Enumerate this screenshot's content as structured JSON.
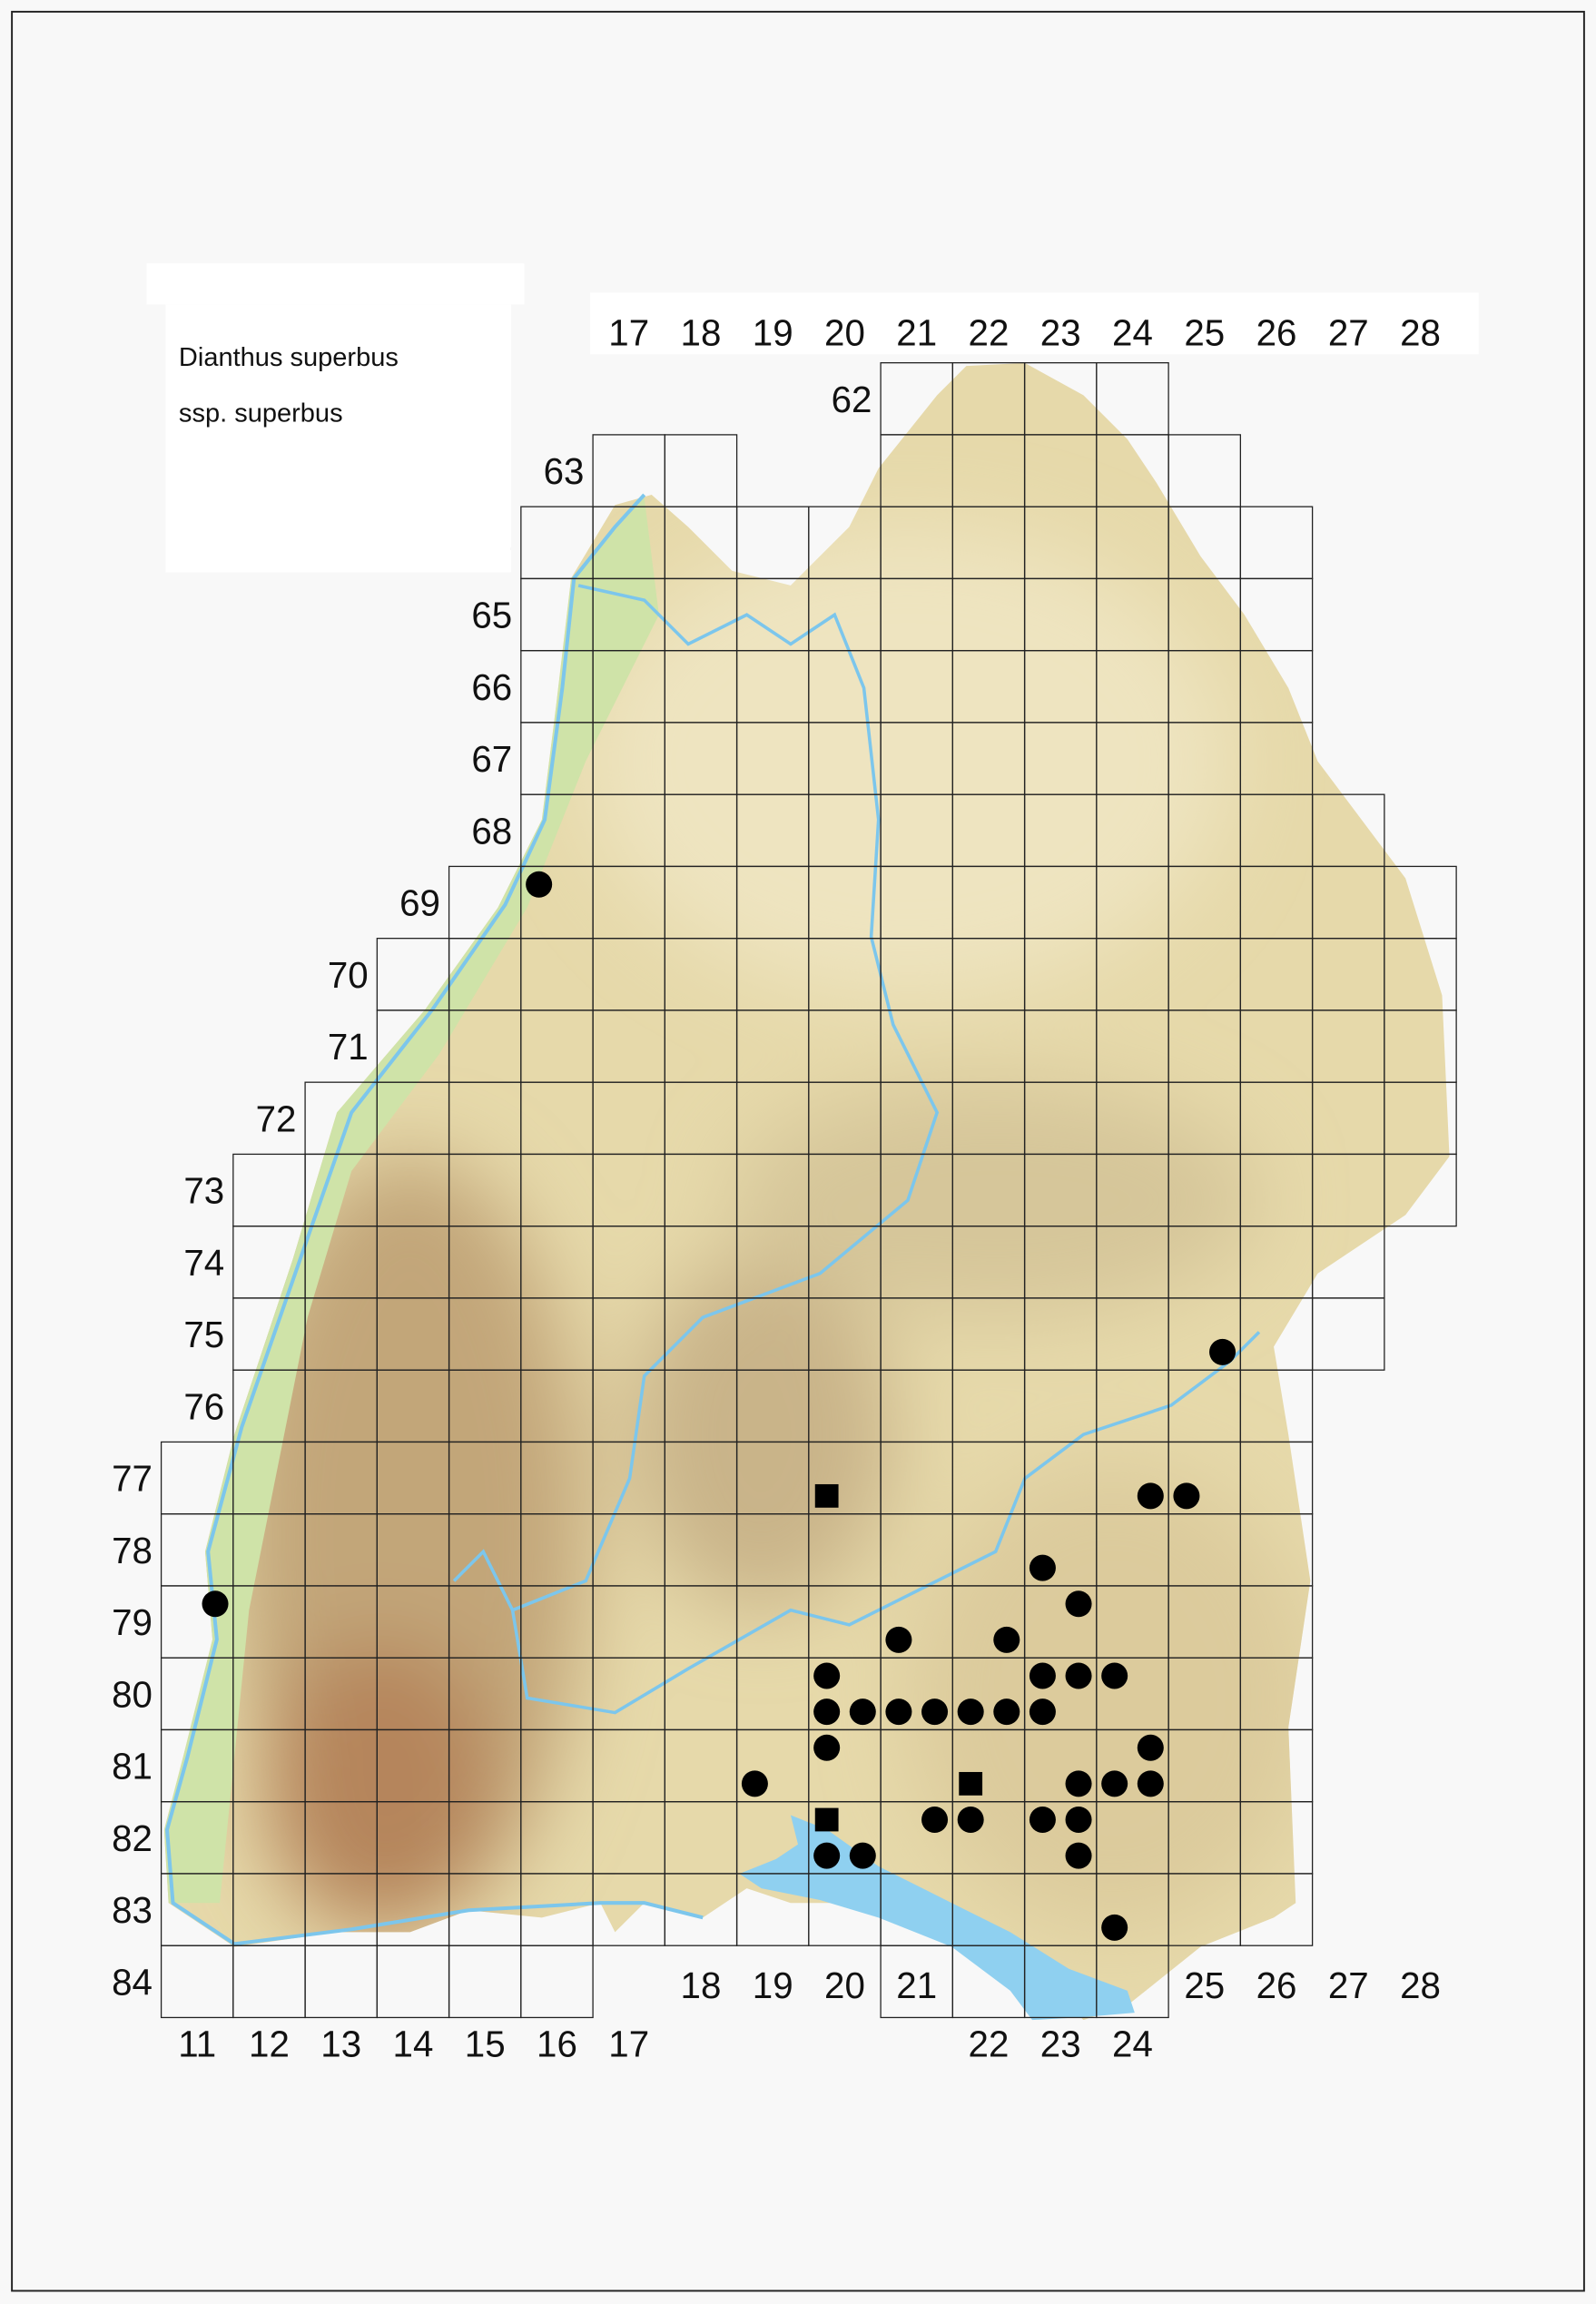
{
  "legend": {
    "species": "Dianthus superbus",
    "subspecies": "ssp. superbus"
  },
  "grid": {
    "top_column_labels": [
      "17",
      "18",
      "19",
      "20",
      "21",
      "22",
      "23",
      "24",
      "25",
      "26",
      "27",
      "28"
    ],
    "row_labels": [
      "62",
      "63",
      "64",
      "65",
      "66",
      "67",
      "68",
      "69",
      "70",
      "71",
      "72",
      "73",
      "74",
      "75",
      "76",
      "77",
      "78",
      "79",
      "80",
      "81",
      "82",
      "83",
      "84"
    ],
    "bottom_column_labels": [
      "11",
      "12",
      "13",
      "14",
      "15",
      "16",
      "17",
      "18",
      "19",
      "20",
      "21",
      "22",
      "23",
      "24",
      "25",
      "26",
      "27",
      "28"
    ]
  },
  "colors": {
    "marker": "#000000",
    "grid_line": "#222222",
    "water": "#8fd0f0",
    "lowland": "#cfe3a8",
    "upland": "#e6d9aa",
    "mountain": "#b89a6c"
  },
  "records": [
    {
      "row": 69,
      "col": 16,
      "qx": 0,
      "qy": 0,
      "symbol": "circle"
    },
    {
      "row": 75,
      "col": 25,
      "qx": 1,
      "qy": 1,
      "symbol": "circle"
    },
    {
      "row": 79,
      "col": 11,
      "qx": 1,
      "qy": 0,
      "symbol": "circle"
    },
    {
      "row": 77,
      "col": 20,
      "qx": 0,
      "qy": 1,
      "symbol": "square"
    },
    {
      "row": 77,
      "col": 24,
      "qx": 1,
      "qy": 1,
      "symbol": "circle"
    },
    {
      "row": 77,
      "col": 25,
      "qx": 0,
      "qy": 1,
      "symbol": "circle"
    },
    {
      "row": 78,
      "col": 23,
      "qx": 0,
      "qy": 1,
      "symbol": "circle"
    },
    {
      "row": 79,
      "col": 23,
      "qx": 1,
      "qy": 0,
      "symbol": "circle"
    },
    {
      "row": 79,
      "col": 21,
      "qx": 0,
      "qy": 1,
      "symbol": "circle"
    },
    {
      "row": 79,
      "col": 22,
      "qx": 1,
      "qy": 1,
      "symbol": "circle"
    },
    {
      "row": 80,
      "col": 20,
      "qx": 0,
      "qy": 0,
      "symbol": "circle"
    },
    {
      "row": 80,
      "col": 23,
      "qx": 0,
      "qy": 0,
      "symbol": "circle"
    },
    {
      "row": 80,
      "col": 23,
      "qx": 1,
      "qy": 0,
      "symbol": "circle"
    },
    {
      "row": 80,
      "col": 24,
      "qx": 0,
      "qy": 0,
      "symbol": "circle"
    },
    {
      "row": 80,
      "col": 20,
      "qx": 0,
      "qy": 1,
      "symbol": "circle"
    },
    {
      "row": 80,
      "col": 20,
      "qx": 1,
      "qy": 1,
      "symbol": "circle"
    },
    {
      "row": 80,
      "col": 21,
      "qx": 0,
      "qy": 1,
      "symbol": "circle"
    },
    {
      "row": 80,
      "col": 21,
      "qx": 1,
      "qy": 1,
      "symbol": "circle"
    },
    {
      "row": 80,
      "col": 22,
      "qx": 0,
      "qy": 1,
      "symbol": "circle"
    },
    {
      "row": 80,
      "col": 22,
      "qx": 1,
      "qy": 1,
      "symbol": "circle"
    },
    {
      "row": 80,
      "col": 23,
      "qx": 0,
      "qy": 1,
      "symbol": "circle"
    },
    {
      "row": 81,
      "col": 20,
      "qx": 0,
      "qy": 0,
      "symbol": "circle"
    },
    {
      "row": 81,
      "col": 24,
      "qx": 1,
      "qy": 0,
      "symbol": "circle"
    },
    {
      "row": 81,
      "col": 19,
      "qx": 0,
      "qy": 1,
      "symbol": "circle"
    },
    {
      "row": 81,
      "col": 22,
      "qx": 0,
      "qy": 1,
      "symbol": "square"
    },
    {
      "row": 81,
      "col": 23,
      "qx": 1,
      "qy": 1,
      "symbol": "circle"
    },
    {
      "row": 81,
      "col": 24,
      "qx": 0,
      "qy": 1,
      "symbol": "circle"
    },
    {
      "row": 81,
      "col": 24,
      "qx": 1,
      "qy": 1,
      "symbol": "circle"
    },
    {
      "row": 82,
      "col": 20,
      "qx": 0,
      "qy": 0,
      "symbol": "square"
    },
    {
      "row": 82,
      "col": 21,
      "qx": 1,
      "qy": 0,
      "symbol": "circle"
    },
    {
      "row": 82,
      "col": 22,
      "qx": 0,
      "qy": 0,
      "symbol": "circle"
    },
    {
      "row": 82,
      "col": 23,
      "qx": 0,
      "qy": 0,
      "symbol": "circle"
    },
    {
      "row": 82,
      "col": 23,
      "qx": 1,
      "qy": 0,
      "symbol": "circle"
    },
    {
      "row": 82,
      "col": 20,
      "qx": 0,
      "qy": 1,
      "symbol": "circle"
    },
    {
      "row": 82,
      "col": 20,
      "qx": 1,
      "qy": 1,
      "symbol": "circle"
    },
    {
      "row": 82,
      "col": 23,
      "qx": 1,
      "qy": 1,
      "symbol": "circle"
    },
    {
      "row": 83,
      "col": 24,
      "qx": 0,
      "qy": 1,
      "symbol": "circle"
    }
  ]
}
